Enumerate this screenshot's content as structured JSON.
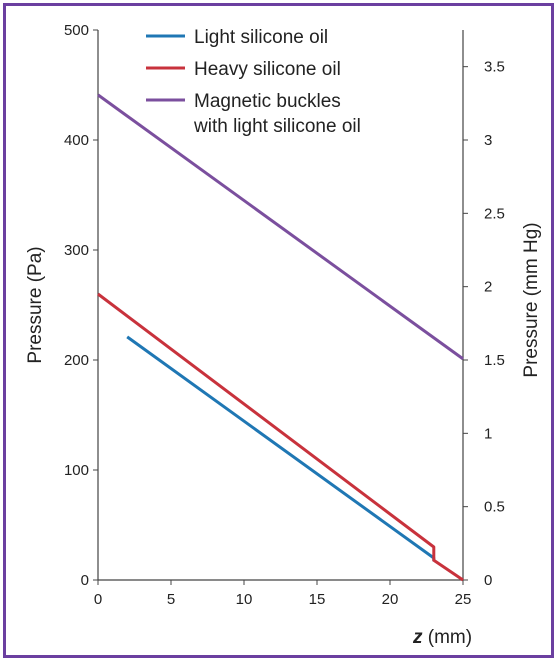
{
  "chart_data": {
    "type": "line",
    "xlabel_var": "z",
    "xlabel_unit": " (mm)",
    "ylabel": "Pressure (Pa)",
    "y2label": "Pressure (mm Hg)",
    "xlim": [
      0,
      25
    ],
    "ylim": [
      0,
      500
    ],
    "y2lim": [
      0,
      3.75
    ],
    "x_ticks": [
      "0",
      "5",
      "10",
      "15",
      "20",
      "25"
    ],
    "y_ticks": [
      "0",
      "100",
      "200",
      "300",
      "400",
      "500"
    ],
    "y2_ticks": [
      "0",
      "0.5",
      "1",
      "1.5",
      "2",
      "2.5",
      "3",
      "3.5"
    ],
    "grid": false,
    "legend_position": "top-left",
    "series": [
      {
        "name": "Light silicone oil",
        "color": "#1F77B4",
        "points": [
          [
            2,
            221
          ],
          [
            23,
            20
          ],
          [
            23,
            17
          ]
        ]
      },
      {
        "name": "Heavy silicone oil",
        "color": "#C8323C",
        "points": [
          [
            0,
            260
          ],
          [
            23,
            30
          ],
          [
            23,
            18
          ],
          [
            25,
            0
          ]
        ]
      },
      {
        "name": "Magnetic buckles",
        "name_line2": "with light silicone oil",
        "color": "#7B4F9E",
        "points": [
          [
            0,
            441
          ],
          [
            25,
            201
          ]
        ]
      }
    ]
  }
}
